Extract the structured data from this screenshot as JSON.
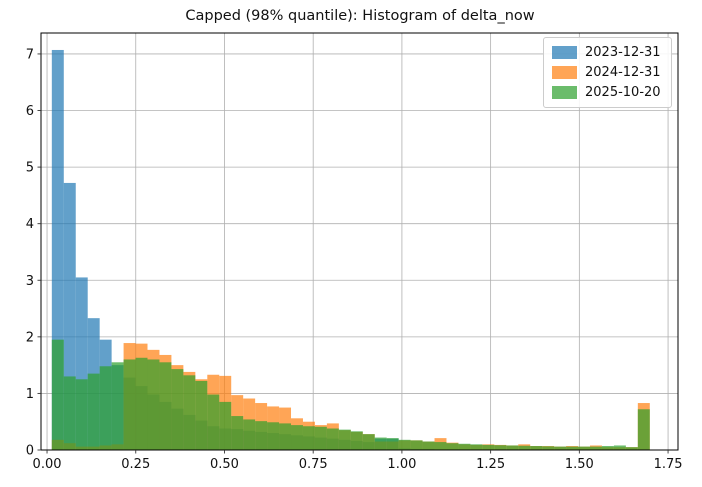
{
  "title": "Capped (98% quantile): Histogram of delta_now",
  "chart_data": {
    "type": "histogram",
    "title": "Capped (98% quantile): Histogram of delta_now",
    "xlabel": "",
    "ylabel": "",
    "grid": true,
    "legend_position": "upper right",
    "xlim": [
      -0.017,
      1.778
    ],
    "ylim": [
      0,
      7.37
    ],
    "x_tick_values": [
      0.0,
      0.25,
      0.5,
      0.75,
      1.0,
      1.25,
      1.5,
      1.75
    ],
    "x_tick_labels": [
      "0.00",
      "0.25",
      "0.50",
      "0.75",
      "1.00",
      "1.25",
      "1.50",
      "1.75"
    ],
    "y_tick_values": [
      0,
      1,
      2,
      3,
      4,
      5,
      6,
      7
    ],
    "y_tick_labels": [
      "0",
      "1",
      "2",
      "3",
      "4",
      "5",
      "6",
      "7"
    ],
    "bin_start": 0.0135,
    "bin_width": 0.0337,
    "bar_alpha": 0.7,
    "grid_color": "#b0b0b0",
    "text_color": "#111111",
    "series": [
      {
        "name": "2023-12-31",
        "color": "#1f77b4",
        "values": [
          7.07,
          4.72,
          3.05,
          2.33,
          1.95,
          1.5,
          1.28,
          1.13,
          0.98,
          0.85,
          0.73,
          0.62,
          0.52,
          0.42,
          0.38,
          0.37,
          0.34,
          0.32,
          0.3,
          0.28,
          0.26,
          0.24,
          0.22,
          0.2,
          0.18,
          0.16,
          0.14,
          0.2,
          0.2,
          0.03,
          0.02,
          0.02,
          0.01,
          0.01,
          0.01,
          0,
          0,
          0,
          0,
          0,
          0,
          0,
          0,
          0,
          0,
          0,
          0,
          0,
          0,
          0
        ]
      },
      {
        "name": "2024-12-31",
        "color": "#ff7f0e",
        "values": [
          0.18,
          0.12,
          0.06,
          0.06,
          0.08,
          0.1,
          1.89,
          1.88,
          1.77,
          1.68,
          1.5,
          1.38,
          1.25,
          1.33,
          1.31,
          0.97,
          0.91,
          0.83,
          0.77,
          0.75,
          0.56,
          0.5,
          0.44,
          0.47,
          0.35,
          0.32,
          0.28,
          0.15,
          0.15,
          0.17,
          0.17,
          0.15,
          0.21,
          0.13,
          0.1,
          0.09,
          0.1,
          0.09,
          0.08,
          0.1,
          0.07,
          0.07,
          0.06,
          0.07,
          0.06,
          0.08,
          0.05,
          0.05,
          0.05,
          0.83
        ]
      },
      {
        "name": "2025-10-20",
        "color": "#2ca02c",
        "values": [
          1.95,
          1.3,
          1.25,
          1.35,
          1.48,
          1.55,
          1.6,
          1.63,
          1.6,
          1.55,
          1.43,
          1.32,
          1.22,
          0.98,
          0.85,
          0.6,
          0.54,
          0.51,
          0.49,
          0.47,
          0.44,
          0.42,
          0.41,
          0.38,
          0.36,
          0.33,
          0.28,
          0.22,
          0.21,
          0.18,
          0.17,
          0.15,
          0.14,
          0.12,
          0.11,
          0.1,
          0.09,
          0.085,
          0.08,
          0.075,
          0.07,
          0.065,
          0.06,
          0.06,
          0.06,
          0.06,
          0.07,
          0.08,
          0.05,
          0.72
        ]
      }
    ]
  }
}
